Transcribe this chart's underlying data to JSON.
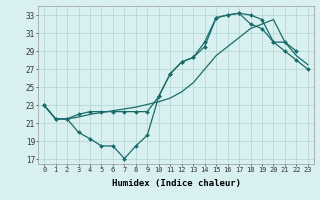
{
  "xlabel": "Humidex (Indice chaleur)",
  "bg_color": "#d8f0f0",
  "grid_color": "#b8d8d8",
  "line_color": "#1a6b6b",
  "xlim": [
    -0.5,
    23.5
  ],
  "ylim": [
    16.5,
    34.0
  ],
  "xticks": [
    0,
    1,
    2,
    3,
    4,
    5,
    6,
    7,
    8,
    9,
    10,
    11,
    12,
    13,
    14,
    15,
    16,
    17,
    18,
    19,
    20,
    21,
    22,
    23
  ],
  "yticks": [
    17,
    19,
    21,
    23,
    25,
    27,
    29,
    31,
    33
  ],
  "series1_x": [
    0,
    1,
    2,
    3,
    4,
    5,
    6,
    7,
    8,
    9,
    10,
    11,
    12,
    13,
    14,
    15,
    16,
    17,
    18,
    19,
    20,
    21,
    22
  ],
  "series1_y": [
    23.0,
    21.5,
    21.5,
    20.0,
    19.3,
    18.5,
    18.5,
    17.1,
    18.5,
    19.7,
    24.0,
    26.5,
    27.8,
    28.3,
    30.0,
    32.7,
    33.0,
    33.2,
    33.0,
    32.5,
    30.0,
    30.0,
    29.0
  ],
  "series2_x": [
    0,
    1,
    2,
    3,
    4,
    5,
    6,
    7,
    8,
    9,
    10,
    11,
    12,
    13,
    14,
    15,
    16,
    17,
    18,
    19,
    20,
    21,
    22,
    23
  ],
  "series2_y": [
    23.0,
    21.5,
    21.5,
    22.0,
    22.3,
    22.3,
    22.3,
    22.3,
    22.3,
    22.3,
    24.0,
    26.5,
    27.8,
    28.3,
    29.5,
    32.7,
    33.0,
    33.2,
    32.0,
    31.5,
    30.0,
    29.0,
    28.0,
    27.0
  ],
  "series3_x": [
    0,
    1,
    2,
    3,
    4,
    5,
    6,
    7,
    8,
    9,
    10,
    11,
    12,
    13,
    14,
    15,
    16,
    17,
    18,
    19,
    20,
    21,
    22,
    23
  ],
  "series3_y": [
    23.0,
    21.5,
    21.5,
    21.7,
    22.0,
    22.2,
    22.4,
    22.6,
    22.8,
    23.1,
    23.4,
    23.8,
    24.5,
    25.5,
    27.0,
    28.5,
    29.5,
    30.5,
    31.5,
    32.0,
    32.5,
    30.0,
    28.5,
    27.5
  ]
}
